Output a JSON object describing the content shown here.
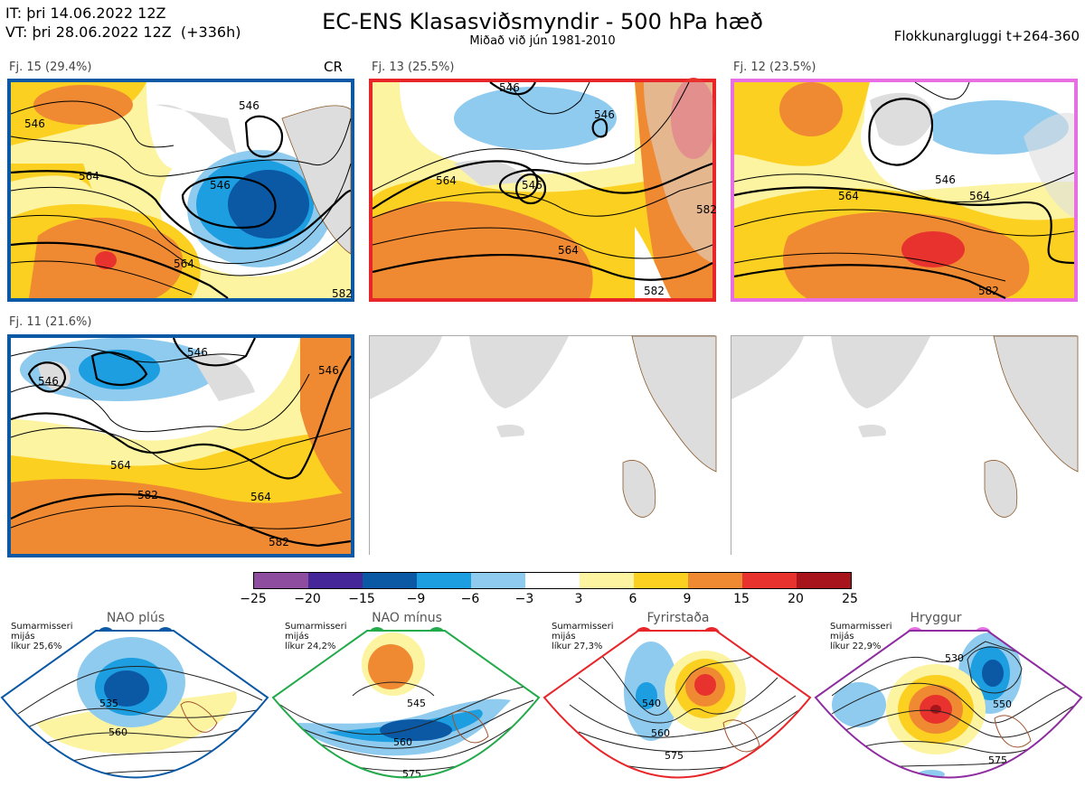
{
  "header": {
    "init_time": "IT: þri 14.06.2022 12Z",
    "valid_time": "VT: þri 28.06.2022 12Z  (+336h)",
    "title": "EC-ENS Klasasviðsmyndir - 500 hPa hæð",
    "subtitle": "Miðað við jún 1981-2010",
    "window": "Flokkunargluggi t+264-360"
  },
  "clusters": [
    {
      "label": "Fj. 15 (29.4%)",
      "frame_color": "#0b58a5",
      "tag": "CR",
      "contours": [
        "546",
        "546",
        "564",
        "564",
        "546",
        "582"
      ]
    },
    {
      "label": "Fj. 13 (25.5%)",
      "frame_color": "#e8262a",
      "contours": [
        "546",
        "546",
        "546",
        "564",
        "564",
        "582",
        "582"
      ]
    },
    {
      "label": "Fj. 12 (23.5%)",
      "frame_color": "#e86ee3",
      "contours": [
        "546",
        "564",
        "564",
        "582"
      ]
    },
    {
      "label": "Fj. 11 (21.6%)",
      "frame_color": "#0b58a5",
      "contours": [
        "546",
        "546",
        "546",
        "564",
        "582",
        "564",
        "582"
      ]
    }
  ],
  "colorbar": {
    "colors": [
      "#8e4d9f",
      "#46279a",
      "#0b58a5",
      "#1c9ee0",
      "#8ecbef",
      "#ffffff",
      "#fcf4a0",
      "#fcd021",
      "#f08a32",
      "#e8322d",
      "#a8141c"
    ],
    "ticks": [
      "−25",
      "−20",
      "−15",
      "−9",
      "−6",
      "−3",
      "3",
      "6",
      "9",
      "15",
      "20",
      "25"
    ]
  },
  "regimes": [
    {
      "name": "NAO plús",
      "season": "Sumarmisseri",
      "mid": "mijás",
      "prob": "líkur 25,6%",
      "color": "#0b58a5",
      "contours": [
        "535",
        "560"
      ]
    },
    {
      "name": "NAO mínus",
      "season": "Sumarmisseri",
      "mid": "mijás",
      "prob": "líkur 24,2%",
      "color": "#22aa4b",
      "contours": [
        "545",
        "560",
        "575"
      ]
    },
    {
      "name": "Fyrirstaða",
      "season": "Sumarmisseri",
      "mid": "mijás",
      "prob": "líkur 27,3%",
      "color": "#e8262a",
      "contours": [
        "540",
        "560",
        "575"
      ]
    },
    {
      "name": "Hryggur",
      "season": "Sumarmisseri",
      "mid": "mijás",
      "prob": "líkur 22,9%",
      "color": "#e86ee3",
      "contours": [
        "530",
        "550",
        "575"
      ]
    }
  ]
}
